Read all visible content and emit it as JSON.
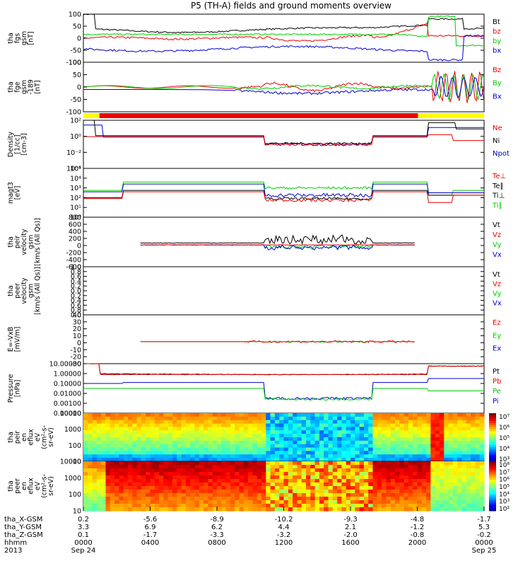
{
  "chart_data": {
    "type": "line",
    "title": "P5 (TH-A) fields and ground moments overview",
    "x_axis": {
      "ticks": [
        "0000",
        "0400",
        "0800",
        "1200",
        "1600",
        "2000",
        "0000"
      ],
      "dates": [
        "Sep 24",
        "Sep 25"
      ],
      "time_label": "hhmm",
      "year_label": "2013"
    },
    "ephemeris": [
      {
        "label": "tha_X-GSM",
        "values": [
          "0.2",
          "-5.6",
          "-8.9",
          "-10.2",
          "-9.3",
          "-4.8",
          "-1.7"
        ]
      },
      {
        "label": "tha_Y-GSM",
        "values": [
          "3.3",
          "6.9",
          "6.2",
          "4.4",
          "2.1",
          "-1.2",
          "5.3"
        ]
      },
      {
        "label": "tha_Z-GSM",
        "values": [
          "0.1",
          "-1.7",
          "-3.3",
          "-3.2",
          "-2.0",
          "-0.8",
          "-0.2"
        ]
      }
    ],
    "panels": [
      {
        "id": "fgs",
        "ylabel": [
          "tha",
          "fgs",
          "gsm",
          "[nT]"
        ],
        "ticks": [
          "100",
          "50",
          "0",
          "-50",
          "-100"
        ],
        "legend": [
          {
            "text": "Bt",
            "color": "#000000"
          },
          {
            "text": "bz",
            "color": "#ee0000"
          },
          {
            "text": "by",
            "color": "#00cc00"
          },
          {
            "text": "bx",
            "color": "#0000cc"
          }
        ]
      },
      {
        "id": "fge",
        "ylabel": [
          "tha",
          "fge",
          "gsm",
          "-189",
          "[nT]"
        ],
        "ticks": [
          "100",
          "50",
          "0",
          "-50",
          "-100"
        ],
        "legend": [
          {
            "text": "Bz",
            "color": "#ee0000"
          },
          {
            "text": "By",
            "color": "#00cc00"
          },
          {
            "text": "Bx",
            "color": "#0000cc"
          }
        ]
      },
      {
        "id": "density",
        "ylabel": [
          "Density",
          "[1/cc]",
          "[cm-3]"
        ],
        "ticks": [
          "10²",
          "10⁰",
          "10⁻²",
          "10⁻⁴"
        ],
        "legend": [
          {
            "text": "Ne",
            "color": "#ee0000"
          },
          {
            "text": "Ni",
            "color": "#000000"
          },
          {
            "text": "Npot",
            "color": "#0000cc"
          }
        ]
      },
      {
        "id": "temp",
        "ylabel": [
          "magt3",
          "[eV]"
        ],
        "ticks": [
          "10⁵",
          "10⁴",
          "10³",
          "10²",
          "10¹",
          "10⁰"
        ],
        "legend": [
          {
            "text": "Te⊥",
            "color": "#ee0000"
          },
          {
            "text": "Te∥",
            "color": "#000000"
          },
          {
            "text": "Ti⊥",
            "color": "#000000"
          },
          {
            "text": "Ti∥",
            "color": "#00cc00"
          }
        ]
      },
      {
        "id": "peir_v",
        "ylabel": [
          "tha",
          "peir",
          "velocity",
          "gsm",
          "[km/s (All Qs)]"
        ],
        "ticks": [
          "800",
          "600",
          "400",
          "200",
          "0",
          "-200",
          "-400",
          "-600"
        ],
        "legend": [
          {
            "text": "Vt",
            "color": "#000000"
          },
          {
            "text": "Vz",
            "color": "#ee0000"
          },
          {
            "text": "Vy",
            "color": "#00cc00"
          },
          {
            "text": "Vx",
            "color": "#0000cc"
          }
        ]
      },
      {
        "id": "peer_v",
        "ylabel": [
          "tha",
          "peer",
          "velocity",
          "gsm",
          "[km/s (All Qs)]"
        ],
        "ticks": [
          "1.0",
          "0.8",
          "0.6",
          "0.4",
          "0.2",
          "0.0",
          "0.2",
          "0.4",
          "0.6",
          "0.8",
          "0.0"
        ],
        "legend": [
          {
            "text": "Vt",
            "color": "#000000"
          },
          {
            "text": "Vz",
            "color": "#ee0000"
          },
          {
            "text": "Vy",
            "color": "#00cc00"
          },
          {
            "text": "Vx",
            "color": "#0000cc"
          }
        ]
      },
      {
        "id": "efield",
        "ylabel": [
          "E=-VxB",
          "[mV/m]"
        ],
        "ticks": [
          "40",
          "30",
          "20",
          "10",
          "0",
          "-10",
          "-20",
          "-30"
        ],
        "legend": [
          {
            "text": "Ez",
            "color": "#ee0000"
          },
          {
            "text": "Ey",
            "color": "#00cc00"
          },
          {
            "text": "Ex",
            "color": "#0000cc"
          }
        ]
      },
      {
        "id": "pressure",
        "ylabel": [
          "Pressure",
          "[nPa]"
        ],
        "ticks": [
          "10.00000",
          "1.00000",
          "0.10000",
          "0.01000",
          "0.00100",
          "0.00010"
        ],
        "legend": [
          {
            "text": "Pt",
            "color": "#000000"
          },
          {
            "text": "Pb",
            "color": "#ee0000"
          },
          {
            "text": "Pe",
            "color": "#00cc00"
          },
          {
            "text": "Pi",
            "color": "#0000cc"
          }
        ]
      },
      {
        "id": "peir_en",
        "ylabel": [
          "tha",
          "peir",
          "en",
          "eflux",
          "eV",
          "(cm²-s-",
          "sr-eV)"
        ],
        "ticks": [
          "10000",
          "1000",
          "100",
          "10"
        ],
        "colorbar": [
          "10⁷",
          "10⁶",
          "10⁵",
          "10⁴",
          "10³"
        ]
      },
      {
        "id": "peer_en",
        "ylabel": [
          "tha",
          "peer",
          "en",
          "eflux",
          "eV",
          "(cm²-s-",
          "sr-eV)"
        ],
        "ticks": [
          "10000",
          "1000",
          "100",
          "10"
        ],
        "colorbar": [
          "10⁸",
          "10⁷",
          "10⁶",
          "10⁵",
          "10⁴",
          "10³",
          "10²"
        ]
      }
    ]
  },
  "colors": {
    "black": "#000000",
    "red": "#ee0000",
    "green": "#00cc00",
    "blue": "#0000cc",
    "yellow": "#ffff00"
  }
}
